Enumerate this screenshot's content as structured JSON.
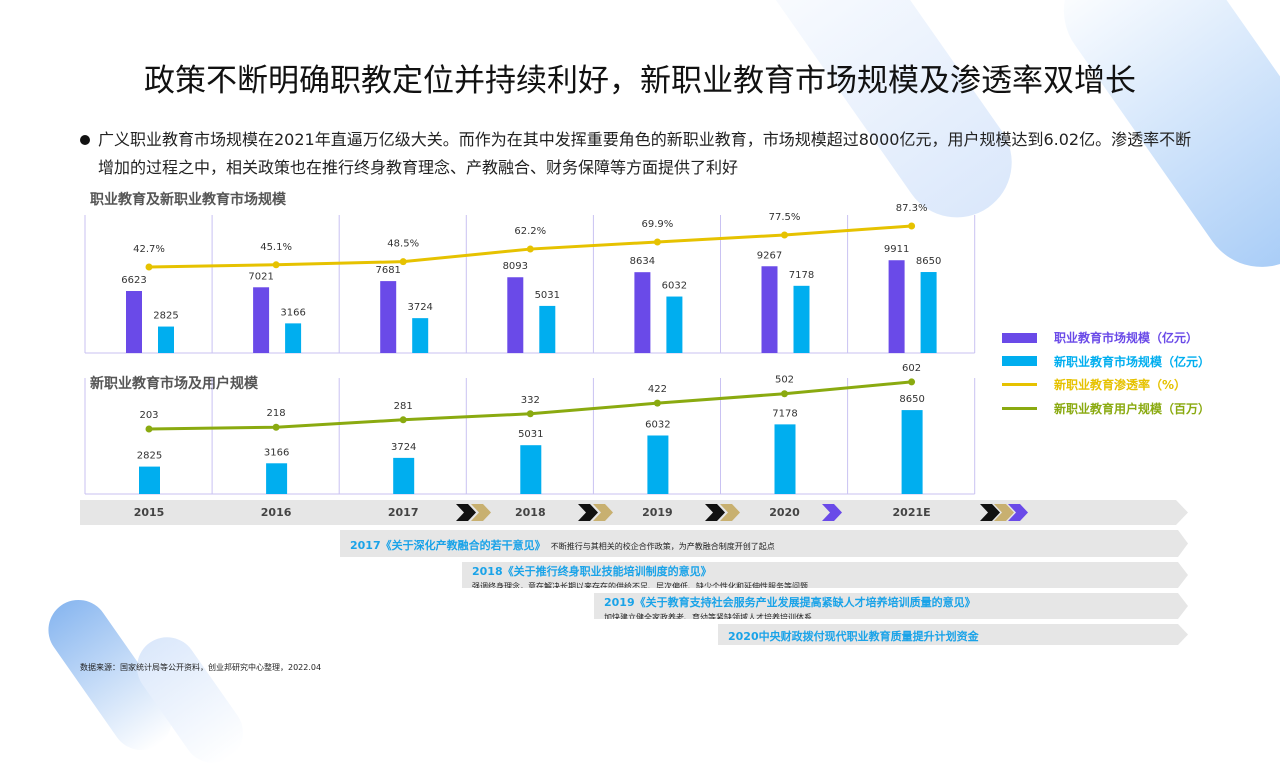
{
  "title": "政策不断明确职教定位并持续利好，新职业教育市场规模及渗透率双增长",
  "bullet": "广义职业教育市场规模在2021年直逼万亿级大关。而作为在其中发挥重要角色的新职业教育，市场规模超过8000亿元，用户规模达到6.02亿。渗透率不断增加的过程之中，相关政策也在推行终身教育理念、产教融合、财务保障等方面提供了利好",
  "colors": {
    "purple": "#6a4ae8",
    "blue": "#00aeef",
    "yellow": "#e6c200",
    "green": "#8aaa10"
  },
  "chart_data": [
    {
      "type": "bar",
      "title": "职业教育及新职业教育市场规模",
      "categories": [
        "2015",
        "2016",
        "2017",
        "2018",
        "2019",
        "2020",
        "2021E"
      ],
      "series": [
        {
          "name": "职业教育市场规模（亿元）",
          "type": "bar",
          "values": [
            6623,
            7021,
            7681,
            8093,
            8634,
            9267,
            9911
          ]
        },
        {
          "name": "新职业教育市场规模（亿元）",
          "type": "bar",
          "values": [
            2825,
            3166,
            3724,
            5031,
            6032,
            7178,
            8650
          ]
        },
        {
          "name": "新职业教育渗透率（%）",
          "type": "line",
          "values": [
            42.7,
            45.1,
            48.5,
            62.2,
            69.9,
            77.5,
            87.3
          ]
        }
      ]
    },
    {
      "type": "bar",
      "title": "新职业教育市场及用户规模",
      "categories": [
        "2015",
        "2016",
        "2017",
        "2018",
        "2019",
        "2020",
        "2021E"
      ],
      "series": [
        {
          "name": "新职业教育市场规模（亿元）",
          "type": "bar",
          "values": [
            2825,
            3166,
            3724,
            5031,
            6032,
            7178,
            8650
          ]
        },
        {
          "name": "新职业教育用户规模（百万）",
          "type": "line",
          "values": [
            203,
            218,
            281,
            332,
            422,
            502,
            602
          ]
        }
      ]
    }
  ],
  "legend": [
    "职业教育市场规模（亿元）",
    "新职业教育市场规模（亿元）",
    "新职业教育渗透率（%）",
    "新职业教育用户规模（百万）"
  ],
  "policies": [
    {
      "head": "2017《关于深化产教融合的若干意见》",
      "desc": "不断推行与其相关的校企合作政策，为产教融合制度开创了起点"
    },
    {
      "head": "2018《关于推行终身职业技能培训制度的意见》",
      "desc": "强调终身理念，意在解决长期以来存在的供给不足、层次偏低、缺少个性化和延伸性服务等问题"
    },
    {
      "head": "2019《关于教育支持社会服务产业发展提高紧缺人才培养培训质量的意见》",
      "desc": "加快建立健全家政养老、育幼等紧缺领域人才培养培训体系"
    },
    {
      "head": "2020中央财政拨付现代职业教育质量提升计划资金",
      "desc": ""
    }
  ],
  "source": "数据来源：国家统计局等公开资料，创业邦研究中心整理，2022.04"
}
